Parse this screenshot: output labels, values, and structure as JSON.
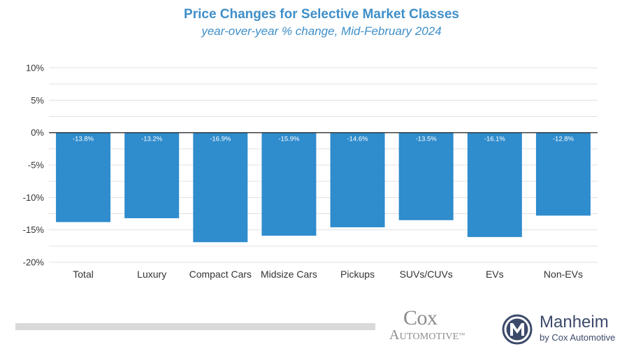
{
  "header": {
    "title": "Price Changes for Selective Market Classes",
    "subtitle": "year-over-year % change, Mid-February 2024"
  },
  "chart_data": {
    "type": "bar",
    "title": "Price Changes for Selective Market Classes",
    "subtitle": "year-over-year % change, Mid-February 2024",
    "categories": [
      "Total",
      "Luxury",
      "Compact Cars",
      "Midsize Cars",
      "Pickups",
      "SUVs/CUVs",
      "EVs",
      "Non-EVs"
    ],
    "values": [
      -13.8,
      -13.2,
      -16.9,
      -15.9,
      -14.6,
      -13.5,
      -16.1,
      -12.8
    ],
    "data_labels": [
      "-13.8%",
      "-13.2%",
      "-16.9%",
      "-15.9%",
      "-14.6%",
      "-13.5%",
      "-16.1%",
      "-12.8%"
    ],
    "yticks": [
      "10%",
      "5%",
      "0%",
      "-5%",
      "-10%",
      "-15%",
      "-20%"
    ],
    "ytick_values": [
      10,
      5,
      0,
      -5,
      -10,
      -15,
      -20
    ],
    "ylim": [
      -20,
      10
    ],
    "grid": true,
    "bar_color": "#2f8ccd",
    "xlabel": "",
    "ylabel": ""
  },
  "footer": {
    "cox_word": "Cox",
    "cox_sub": "Automotive",
    "tm": "™",
    "manheim_name": "Manheim",
    "manheim_sub": "by Cox Automotive"
  }
}
